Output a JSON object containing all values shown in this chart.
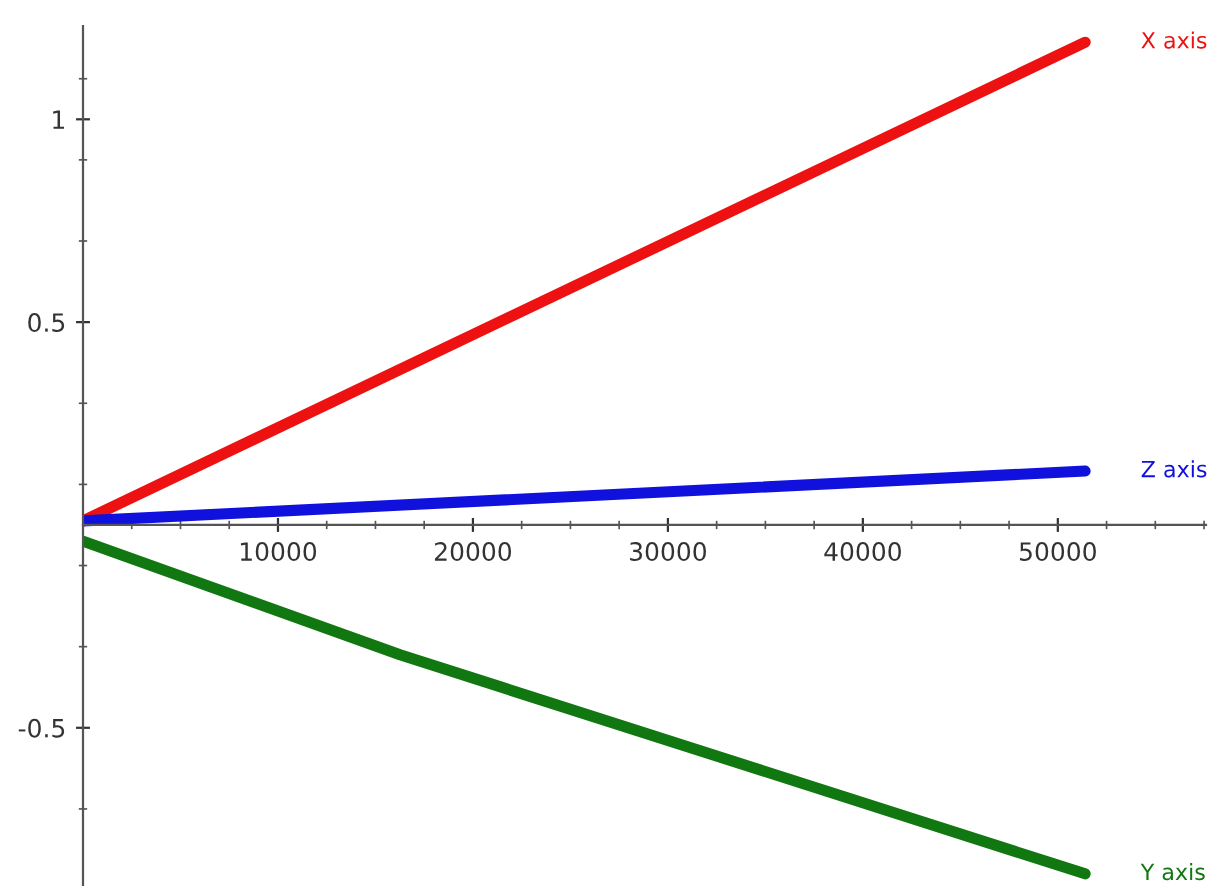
{
  "chart_data": {
    "type": "line",
    "xlim": [
      0,
      57600
    ],
    "ylim": [
      -0.89,
      1.23
    ],
    "xticks": [
      10000,
      20000,
      30000,
      40000,
      50000
    ],
    "yticks": [
      {
        "value": -0.5,
        "label": "-0.5"
      },
      0.5,
      1
    ],
    "grid": false,
    "legend": false,
    "marker": "none",
    "line_style": "solid",
    "series": [
      {
        "name": "X axis",
        "color": "#ee1111",
        "x": [
          0,
          51400
        ],
        "values": [
          0.01,
          1.19
        ]
      },
      {
        "name": "Z axis",
        "color": "#1111dd",
        "x": [
          0,
          51400
        ],
        "values": [
          0.01,
          0.133
        ]
      },
      {
        "name": "Y axis",
        "color": "#117711",
        "x": [
          0,
          16260,
          51400
        ],
        "values": [
          -0.04,
          -0.32,
          -0.86
        ]
      }
    ]
  }
}
